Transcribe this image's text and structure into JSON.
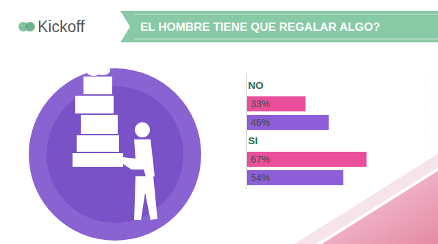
{
  "header": {
    "brand": "Kickoff"
  },
  "chart_data": {
    "type": "bar",
    "orientation": "horizontal",
    "title": "EL HOMBRE TIENE QUE REGALAR ALGO?",
    "categories": [
      "NO",
      "SI"
    ],
    "series": [
      {
        "color": "#e94f9b",
        "values": [
          33,
          67
        ],
        "value_labels": [
          "33%",
          "67%"
        ]
      },
      {
        "color": "#8c5fd8",
        "values": [
          46,
          54
        ],
        "value_labels": [
          "46%",
          "54%"
        ]
      }
    ],
    "xlim": [
      0,
      100
    ],
    "data_labels": true,
    "tick_labels": false
  }
}
